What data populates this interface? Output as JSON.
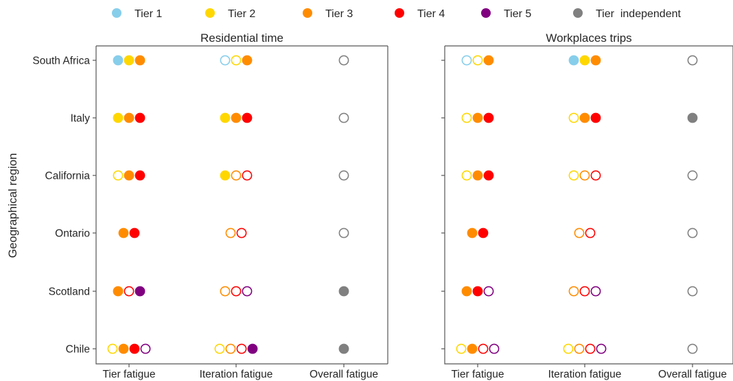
{
  "chart_data": {
    "type": "scatter",
    "legend": {
      "placement": "top",
      "items": [
        {
          "label": "Tier 1",
          "color": "#87ceeb"
        },
        {
          "label": "Tier 2",
          "color": "#ffd700"
        },
        {
          "label": "Tier 3",
          "color": "#ff8c00"
        },
        {
          "label": "Tier 4",
          "color": "#ff0000"
        },
        {
          "label": "Tier 5",
          "color": "#800080"
        },
        {
          "label": "Tier  independent",
          "color": "#808080"
        }
      ]
    },
    "ylabel": "Geographical region",
    "regions": [
      "South Africa",
      "Italy",
      "California",
      "Ontario",
      "Scotland",
      "Chile"
    ],
    "categories": [
      "Tier fatigue",
      "Iteration fatigue",
      "Overall fatigue"
    ],
    "marker_encoding": {
      "filled": 1,
      "hollow": 0
    },
    "panels": [
      {
        "title": "Residential time",
        "rows": [
          {
            "tier_fatigue": [
              [
                "Tier 1",
                1
              ],
              [
                "Tier 2",
                1
              ],
              [
                "Tier 3",
                1
              ]
            ],
            "iteration_fatigue": [
              [
                "Tier 1",
                0
              ],
              [
                "Tier 2",
                0
              ],
              [
                "Tier 3",
                1
              ]
            ],
            "overall_fatigue": 0
          },
          {
            "tier_fatigue": [
              [
                "Tier 2",
                1
              ],
              [
                "Tier 3",
                1
              ],
              [
                "Tier 4",
                1
              ]
            ],
            "iteration_fatigue": [
              [
                "Tier 2",
                1
              ],
              [
                "Tier 3",
                1
              ],
              [
                "Tier 4",
                1
              ]
            ],
            "overall_fatigue": 0
          },
          {
            "tier_fatigue": [
              [
                "Tier 2",
                0
              ],
              [
                "Tier 3",
                1
              ],
              [
                "Tier 4",
                1
              ]
            ],
            "iteration_fatigue": [
              [
                "Tier 2",
                1
              ],
              [
                "Tier 3",
                0
              ],
              [
                "Tier 4",
                0
              ]
            ],
            "overall_fatigue": 0
          },
          {
            "tier_fatigue": [
              [
                "Tier 3",
                1
              ],
              [
                "Tier 4",
                1
              ]
            ],
            "iteration_fatigue": [
              [
                "Tier 3",
                0
              ],
              [
                "Tier 4",
                0
              ]
            ],
            "overall_fatigue": 0
          },
          {
            "tier_fatigue": [
              [
                "Tier 3",
                1
              ],
              [
                "Tier 4",
                0
              ],
              [
                "Tier 5",
                1
              ]
            ],
            "iteration_fatigue": [
              [
                "Tier 3",
                0
              ],
              [
                "Tier 4",
                0
              ],
              [
                "Tier 5",
                0
              ]
            ],
            "overall_fatigue": 1
          },
          {
            "tier_fatigue": [
              [
                "Tier 2",
                0
              ],
              [
                "Tier 3",
                1
              ],
              [
                "Tier 4",
                1
              ],
              [
                "Tier 5",
                0
              ]
            ],
            "iteration_fatigue": [
              [
                "Tier 2",
                0
              ],
              [
                "Tier 3",
                0
              ],
              [
                "Tier 4",
                0
              ],
              [
                "Tier 5",
                1
              ]
            ],
            "overall_fatigue": 1
          }
        ]
      },
      {
        "title": "Workplaces trips",
        "rows": [
          {
            "tier_fatigue": [
              [
                "Tier 1",
                0
              ],
              [
                "Tier 2",
                0
              ],
              [
                "Tier 3",
                1
              ]
            ],
            "iteration_fatigue": [
              [
                "Tier 1",
                1
              ],
              [
                "Tier 2",
                1
              ],
              [
                "Tier 3",
                1
              ]
            ],
            "overall_fatigue": 0
          },
          {
            "tier_fatigue": [
              [
                "Tier 2",
                0
              ],
              [
                "Tier 3",
                1
              ],
              [
                "Tier 4",
                1
              ]
            ],
            "iteration_fatigue": [
              [
                "Tier 2",
                0
              ],
              [
                "Tier 3",
                1
              ],
              [
                "Tier 4",
                1
              ]
            ],
            "overall_fatigue": 1
          },
          {
            "tier_fatigue": [
              [
                "Tier 2",
                0
              ],
              [
                "Tier 3",
                1
              ],
              [
                "Tier 4",
                1
              ]
            ],
            "iteration_fatigue": [
              [
                "Tier 2",
                0
              ],
              [
                "Tier 3",
                0
              ],
              [
                "Tier 4",
                0
              ]
            ],
            "overall_fatigue": 0
          },
          {
            "tier_fatigue": [
              [
                "Tier 3",
                1
              ],
              [
                "Tier 4",
                1
              ]
            ],
            "iteration_fatigue": [
              [
                "Tier 3",
                0
              ],
              [
                "Tier 4",
                0
              ]
            ],
            "overall_fatigue": 0
          },
          {
            "tier_fatigue": [
              [
                "Tier 3",
                1
              ],
              [
                "Tier 4",
                1
              ],
              [
                "Tier 5",
                0
              ]
            ],
            "iteration_fatigue": [
              [
                "Tier 3",
                0
              ],
              [
                "Tier 4",
                0
              ],
              [
                "Tier 5",
                0
              ]
            ],
            "overall_fatigue": 0
          },
          {
            "tier_fatigue": [
              [
                "Tier 2",
                0
              ],
              [
                "Tier 3",
                1
              ],
              [
                "Tier 4",
                0
              ],
              [
                "Tier 5",
                0
              ]
            ],
            "iteration_fatigue": [
              [
                "Tier 2",
                0
              ],
              [
                "Tier 3",
                0
              ],
              [
                "Tier 4",
                0
              ],
              [
                "Tier 5",
                0
              ]
            ],
            "overall_fatigue": 0
          }
        ]
      }
    ]
  }
}
